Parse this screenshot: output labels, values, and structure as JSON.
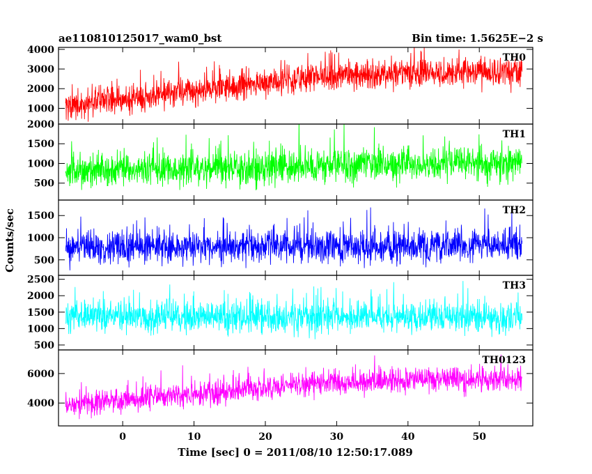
{
  "header": {
    "left_title": "ae110810125017_wam0_bst",
    "right_title": "Bin time: 1.5625E−2 s"
  },
  "chart_data": {
    "type": "line",
    "title": "ae110810125017_wam0_bst",
    "subtitle": "Bin time: 1.5625E−2 s",
    "xlabel": "Time [sec] 0 = 2011/08/10 12:50:17.089",
    "ylabel": "Counts/sec",
    "xlim": [
      -9,
      57.5
    ],
    "x_ticks": [
      0,
      10,
      20,
      30,
      40,
      50
    ],
    "x_range_data": [
      -8,
      56
    ],
    "grid": false,
    "panels": [
      {
        "name": "TH0",
        "color": "#ff0000",
        "ylim": [
          200,
          4100
        ],
        "y_ticks": [
          1000,
          2000,
          3000,
          4000
        ],
        "points": [
          [
            -8,
            1100
          ],
          [
            0,
            1450
          ],
          [
            10,
            1850
          ],
          [
            20,
            2300
          ],
          [
            30,
            2650
          ],
          [
            40,
            2750
          ],
          [
            50,
            2800
          ],
          [
            56,
            2850
          ]
        ],
        "noise": 650
      },
      {
        "name": "TH1",
        "color": "#00ff00",
        "ylim": [
          70,
          2000
        ],
        "y_ticks": [
          500,
          1000,
          1500,
          2000
        ],
        "points": [
          [
            -8,
            780
          ],
          [
            0,
            820
          ],
          [
            10,
            860
          ],
          [
            20,
            900
          ],
          [
            30,
            940
          ],
          [
            40,
            980
          ],
          [
            50,
            1000
          ],
          [
            56,
            1010
          ]
        ],
        "noise": 380
      },
      {
        "name": "TH2",
        "color": "#0000ff",
        "ylim": [
          150,
          1850
        ],
        "y_ticks": [
          500,
          1000,
          1500
        ],
        "points": [
          [
            -8,
            800
          ],
          [
            56,
            800
          ]
        ],
        "noise": 330
      },
      {
        "name": "TH3",
        "color": "#00ffff",
        "ylim": [
          350,
          2620
        ],
        "y_ticks": [
          500,
          1000,
          1500,
          2000,
          2500
        ],
        "points": [
          [
            -8,
            1350
          ],
          [
            56,
            1350
          ]
        ],
        "noise": 420
      },
      {
        "name": "TH0123",
        "color": "#ff00ff",
        "ylim": [
          2450,
          7600
        ],
        "y_ticks": [
          4000,
          6000
        ],
        "points": [
          [
            -8,
            3900
          ],
          [
            0,
            4200
          ],
          [
            10,
            4600
          ],
          [
            20,
            5000
          ],
          [
            30,
            5400
          ],
          [
            40,
            5550
          ],
          [
            50,
            5600
          ],
          [
            56,
            5650
          ]
        ],
        "noise": 750
      }
    ]
  }
}
